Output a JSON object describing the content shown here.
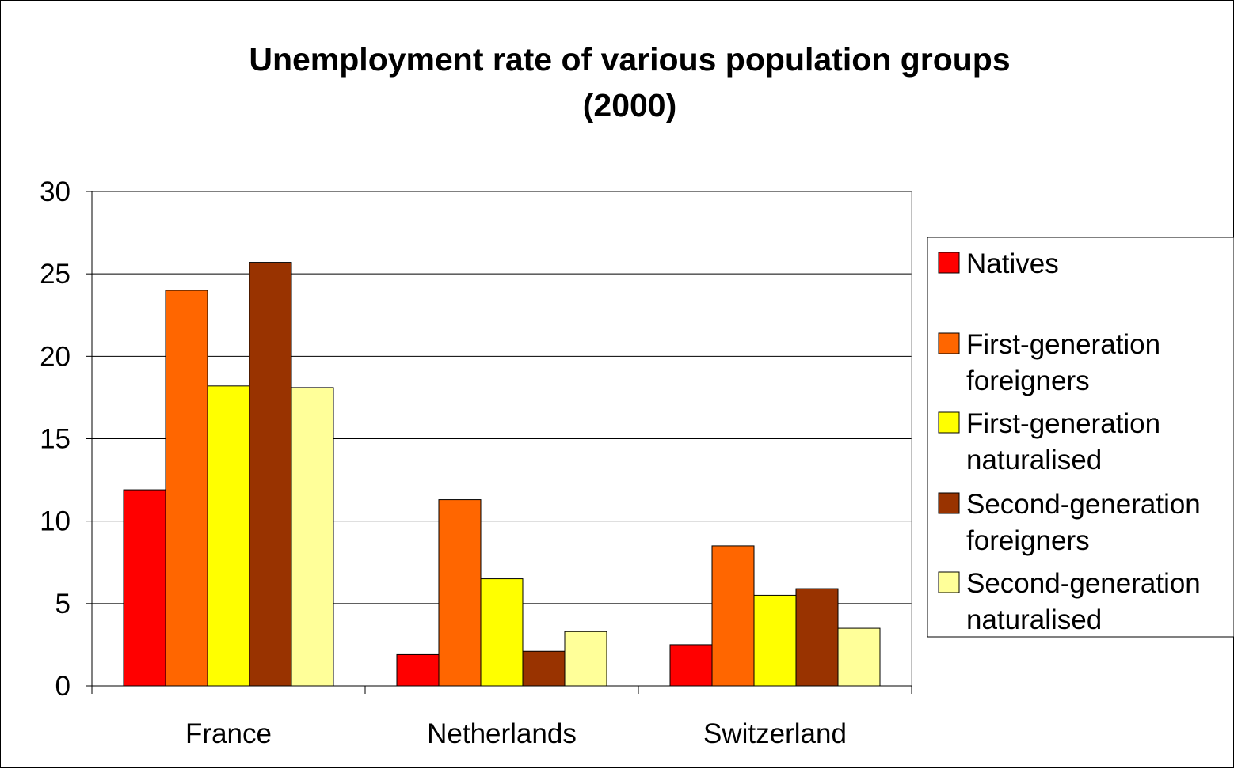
{
  "chart_data": {
    "type": "bar",
    "title_lines": [
      "Unemployment rate of various population groups",
      "(2000)"
    ],
    "xlabel": "",
    "ylabel": "",
    "categories": [
      "France",
      "Netherlands",
      "Switzerland"
    ],
    "ylim": [
      0,
      30
    ],
    "yticks": [
      0,
      5,
      10,
      15,
      20,
      25,
      30
    ],
    "grid": true,
    "legend_position": "right",
    "series": [
      {
        "name_lines": [
          "Natives"
        ],
        "color": "#FF0000",
        "values": [
          11.9,
          1.9,
          2.5
        ]
      },
      {
        "name_lines": [
          "First-generation",
          "foreigners"
        ],
        "color": "#FF6600",
        "values": [
          24.0,
          11.3,
          8.5
        ]
      },
      {
        "name_lines": [
          "First-generation",
          "naturalised"
        ],
        "color": "#FFFF00",
        "values": [
          18.2,
          6.5,
          5.5
        ]
      },
      {
        "name_lines": [
          "Second-generation",
          "foreigners"
        ],
        "color": "#993300",
        "values": [
          25.7,
          2.1,
          5.9
        ]
      },
      {
        "name_lines": [
          "Second-generation",
          "naturalised"
        ],
        "color": "#FFFF99",
        "values": [
          18.1,
          3.3,
          3.5
        ]
      }
    ],
    "plot_background": "#ffffff",
    "gridline_color": "#000000"
  }
}
